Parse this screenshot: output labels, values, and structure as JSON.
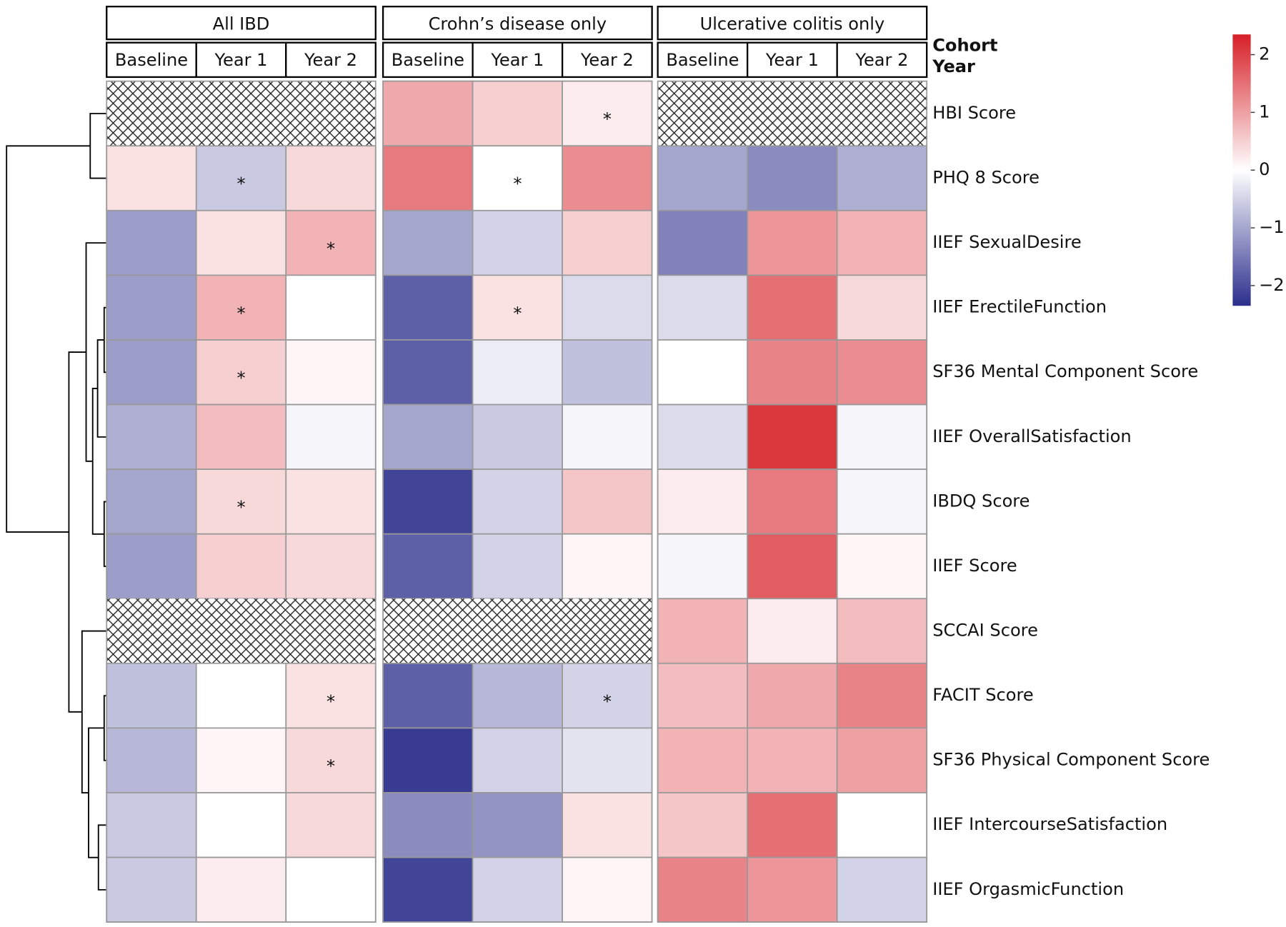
{
  "chart_data": {
    "type": "heatmap",
    "column_groups": [
      {
        "name": "All IBD",
        "columns": [
          "Baseline",
          "Year 1",
          "Year 2"
        ]
      },
      {
        "name": "Crohn’s disease only",
        "columns": [
          "Baseline",
          "Year 1",
          "Year 2"
        ]
      },
      {
        "name": "Ulcerative colitis only",
        "columns": [
          "Baseline",
          "Year 1",
          "Year 2"
        ]
      }
    ],
    "legend_labels": [
      "Cohort",
      "Year"
    ],
    "rows": [
      "HBI Score",
      "PHQ 8 Score",
      "IIEF SexualDesire",
      "IIEF ErectileFunction",
      "SF36 Mental Component Score",
      "IIEF OverallSatisfaction",
      "IBDQ Score",
      "IIEF Score",
      "SCCAI Score",
      "FACIT Score",
      "SF36 Physical Component Score",
      "IIEF IntercourseSatisfaction",
      "IIEF OrgasmicFunction"
    ],
    "values": [
      [
        null,
        null,
        null,
        0.9,
        0.5,
        0.2,
        null,
        null,
        null
      ],
      [
        0.3,
        -0.6,
        0.4,
        1.4,
        0.0,
        1.2,
        -1.0,
        -1.3,
        -0.9
      ],
      [
        -1.1,
        0.3,
        0.8,
        -1.0,
        -0.5,
        0.5,
        -1.4,
        1.1,
        0.8
      ],
      [
        -1.1,
        0.8,
        0.0,
        -1.8,
        0.3,
        -0.4,
        -0.4,
        1.5,
        0.4
      ],
      [
        -1.1,
        0.5,
        0.1,
        -1.8,
        -0.2,
        -0.7,
        0.0,
        1.3,
        1.2
      ],
      [
        -0.9,
        0.7,
        -0.1,
        -1.0,
        -0.6,
        -0.1,
        -0.4,
        2.1,
        -0.1
      ],
      [
        -1.0,
        0.4,
        0.3,
        -2.1,
        -0.5,
        0.6,
        0.2,
        1.4,
        -0.1
      ],
      [
        -1.1,
        0.5,
        0.4,
        -1.8,
        -0.5,
        0.1,
        -0.1,
        1.7,
        0.1
      ],
      [
        null,
        null,
        null,
        null,
        null,
        null,
        0.8,
        0.2,
        0.7
      ],
      [
        -0.7,
        0.0,
        0.3,
        -1.8,
        -0.8,
        -0.5,
        0.7,
        0.9,
        1.3
      ],
      [
        -0.8,
        0.1,
        0.4,
        -2.2,
        -0.5,
        -0.3,
        0.8,
        0.8,
        1.0
      ],
      [
        -0.6,
        0.0,
        0.4,
        -1.3,
        -1.2,
        0.3,
        0.6,
        1.5,
        0.0
      ],
      [
        -0.6,
        0.2,
        0.0,
        -2.1,
        -0.5,
        0.1,
        1.3,
        1.1,
        -0.5
      ]
    ],
    "annotations": [
      [
        null,
        null,
        null,
        null,
        null,
        "*",
        null,
        null,
        null
      ],
      [
        null,
        "*",
        null,
        null,
        "*",
        null,
        null,
        null,
        null
      ],
      [
        null,
        null,
        "*",
        null,
        null,
        null,
        null,
        null,
        null
      ],
      [
        null,
        "*",
        null,
        null,
        "*",
        null,
        null,
        null,
        null
      ],
      [
        null,
        "*",
        null,
        null,
        null,
        null,
        null,
        null,
        null
      ],
      [
        null,
        null,
        null,
        null,
        null,
        null,
        null,
        null,
        null
      ],
      [
        null,
        "*",
        null,
        null,
        null,
        null,
        null,
        null,
        null
      ],
      [
        null,
        null,
        null,
        null,
        null,
        null,
        null,
        null,
        null
      ],
      [
        null,
        null,
        null,
        null,
        null,
        null,
        null,
        null,
        null
      ],
      [
        null,
        null,
        "*",
        null,
        null,
        "*",
        null,
        null,
        null
      ],
      [
        null,
        null,
        "*",
        null,
        null,
        null,
        null,
        null,
        null
      ],
      [
        null,
        null,
        null,
        null,
        null,
        null,
        null,
        null,
        null
      ],
      [
        null,
        null,
        null,
        null,
        null,
        null,
        null,
        null,
        null
      ]
    ],
    "clim": [
      -2.35,
      2.35
    ],
    "colorbar_ticks": [
      2,
      1,
      0,
      {
        "value": -1,
        "label": "−1"
      },
      {
        "value": -2,
        "label": "−2"
      }
    ],
    "colors": [
      "#2b2e8c",
      "#ffffff",
      "#d61f26"
    ],
    "missing_pattern": "crosshatch"
  }
}
